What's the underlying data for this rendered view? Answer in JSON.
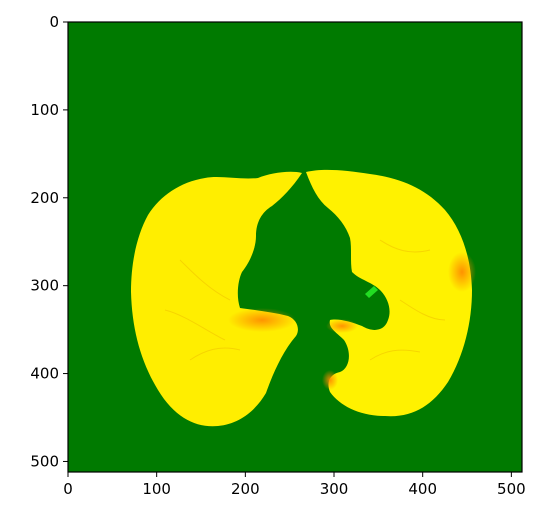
{
  "figure": {
    "type": "image",
    "image_extent": [
      0,
      512
    ],
    "x_ticks": [
      "0",
      "100",
      "200",
      "300",
      "400",
      "500"
    ],
    "y_ticks": [
      "0",
      "100",
      "200",
      "300",
      "400",
      "500"
    ],
    "colors": {
      "background_green": "#007a00",
      "lung_yellow": "#ffee00",
      "lung_yellow_light": "#fff200",
      "hotspot_orange": "#ff9a00",
      "accent_light_green": "#22dd22"
    }
  }
}
